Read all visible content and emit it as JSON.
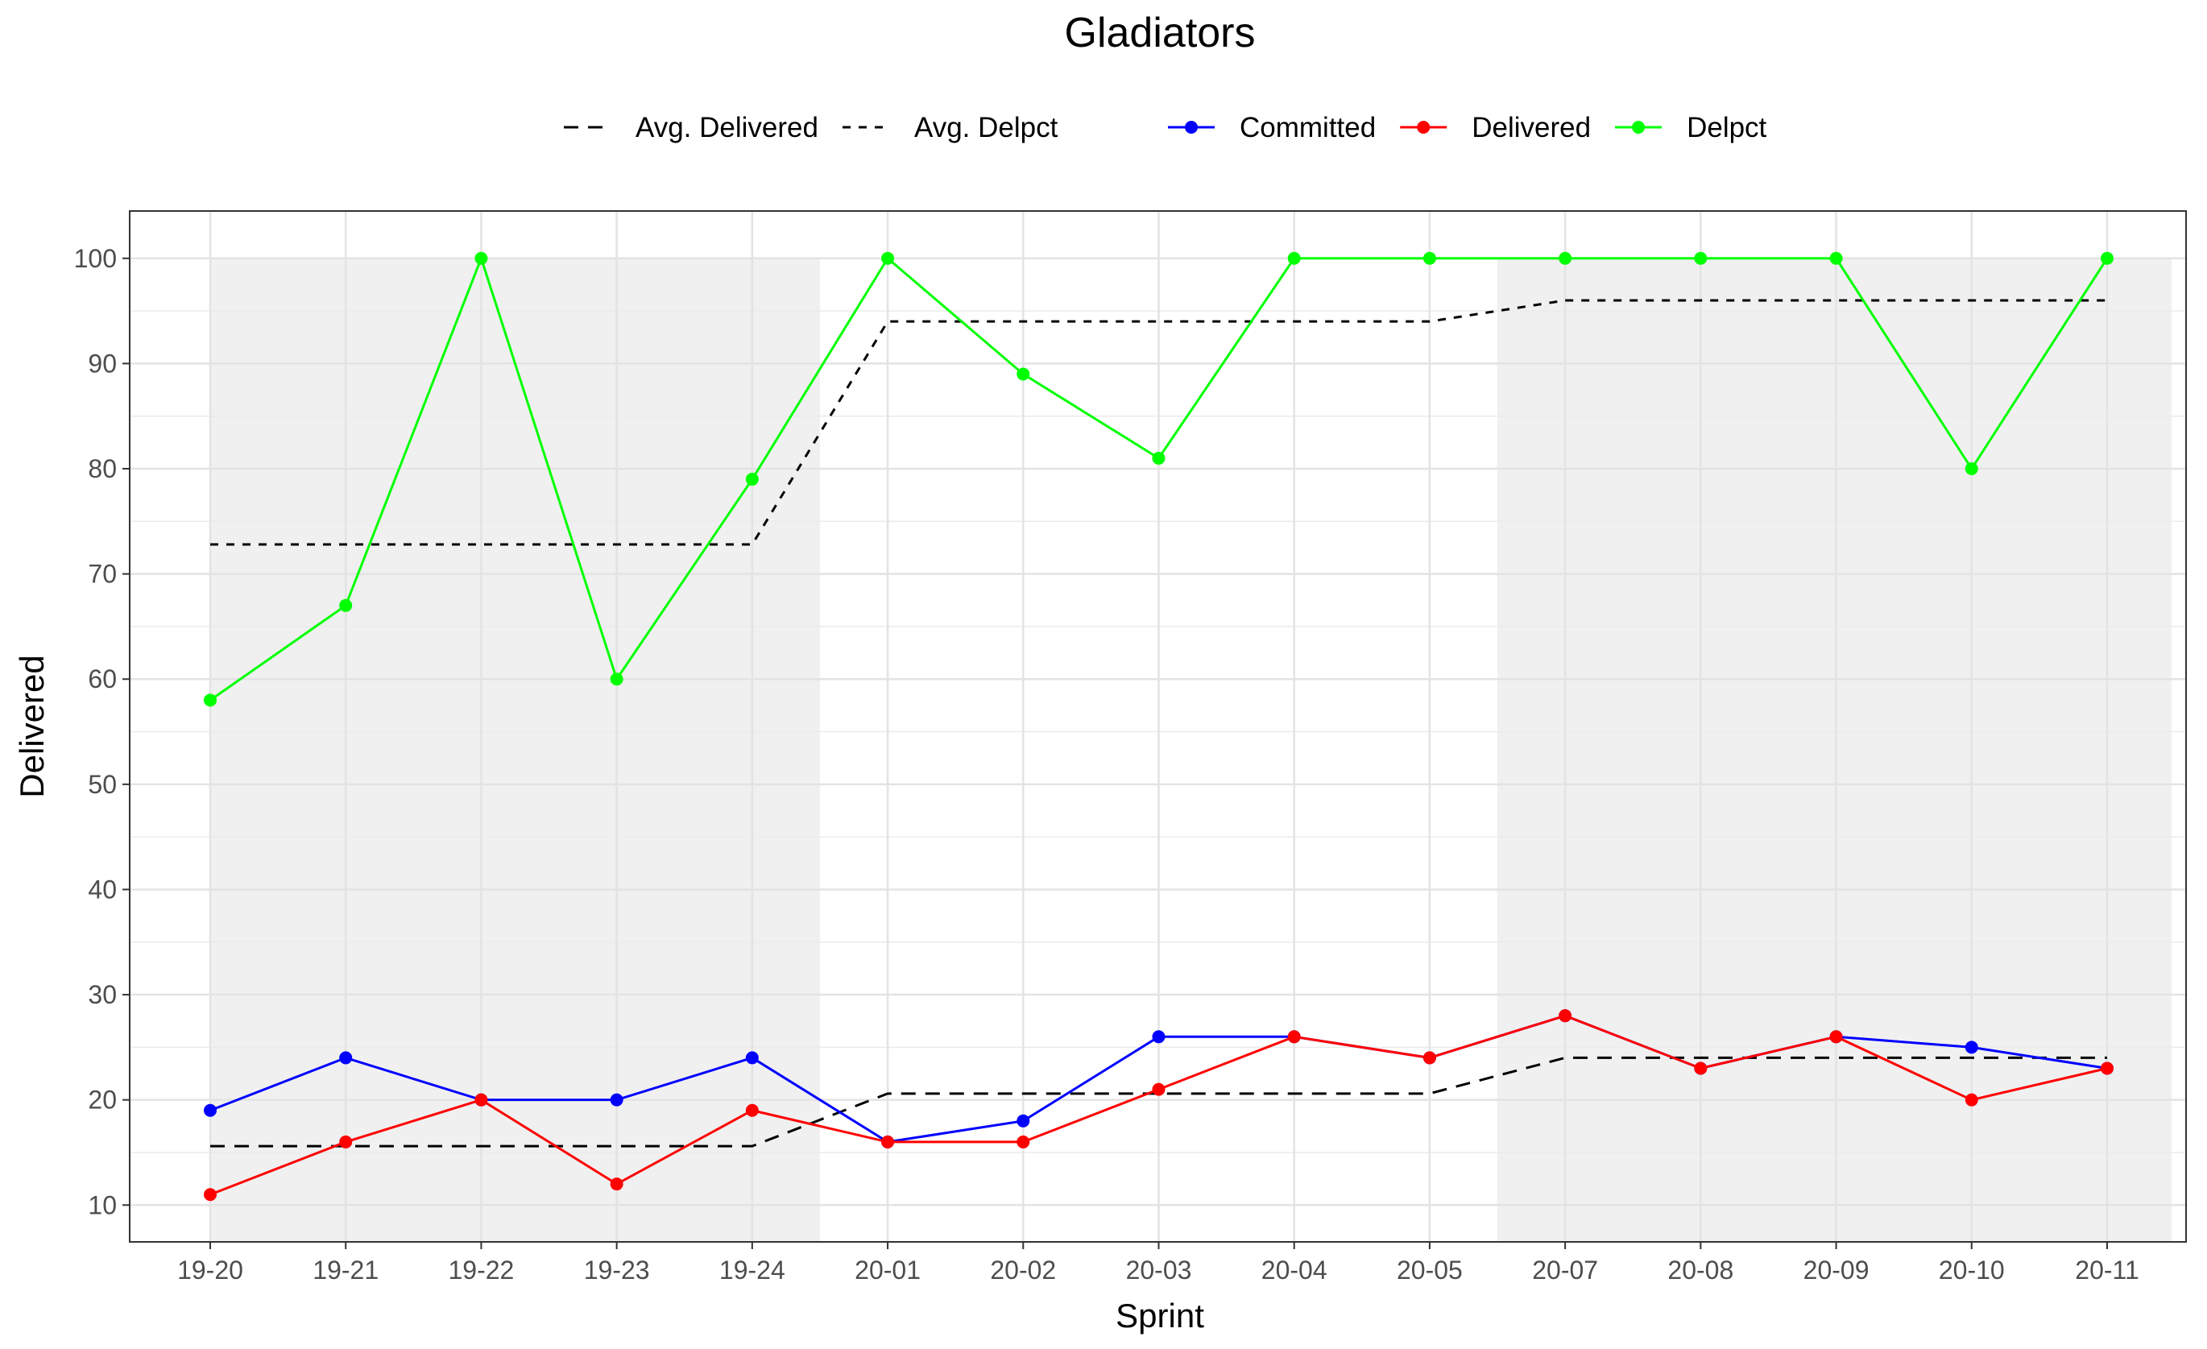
{
  "chart_data": {
    "type": "line",
    "title": "Gladiators",
    "xlabel": "Sprint",
    "ylabel": "Delivered",
    "categories": [
      "19-20",
      "19-21",
      "19-22",
      "19-23",
      "19-24",
      "20-01",
      "20-02",
      "20-03",
      "20-04",
      "20-05",
      "20-07",
      "20-08",
      "20-09",
      "20-10",
      "20-11"
    ],
    "ylim": [
      6.5,
      104.5
    ],
    "yticks": [
      10,
      20,
      30,
      40,
      50,
      60,
      70,
      80,
      90,
      100
    ],
    "grid": true,
    "legend_position": "top",
    "shaded_bands": [
      {
        "from": "19-20",
        "to": "19-24"
      },
      {
        "from": "20-07",
        "to": "20-11"
      }
    ],
    "series": [
      {
        "name": "Committed",
        "color": "#0000ff",
        "style": "solid-points",
        "values": [
          19,
          24,
          20,
          20,
          24,
          16,
          18,
          26,
          26,
          24,
          28,
          23,
          26,
          25,
          23
        ]
      },
      {
        "name": "Delivered",
        "color": "#ff0000",
        "style": "solid-points",
        "values": [
          11,
          16,
          20,
          12,
          19,
          16,
          16,
          21,
          26,
          24,
          28,
          23,
          26,
          20,
          23
        ]
      },
      {
        "name": "Delpct",
        "color": "#00ff00",
        "style": "solid-points",
        "values": [
          58,
          67,
          100,
          60,
          79,
          100,
          89,
          81,
          100,
          100,
          100,
          100,
          100,
          80,
          100
        ]
      },
      {
        "name": "Avg. Delivered",
        "color": "#000000",
        "style": "dashed-long",
        "values": [
          15.6,
          15.6,
          15.6,
          15.6,
          15.6,
          20.6,
          20.6,
          20.6,
          20.6,
          20.6,
          24,
          24,
          24,
          24,
          24
        ]
      },
      {
        "name": "Avg. Delpct",
        "color": "#000000",
        "style": "dashed-short",
        "values": [
          72.8,
          72.8,
          72.8,
          72.8,
          72.8,
          94,
          94,
          94,
          94,
          94,
          96,
          96,
          96,
          96,
          96
        ]
      }
    ],
    "legend": {
      "dashed": [
        "Avg. Delivered",
        "Avg. Delpct"
      ],
      "points": [
        "Committed",
        "Delivered",
        "Delpct"
      ]
    }
  }
}
